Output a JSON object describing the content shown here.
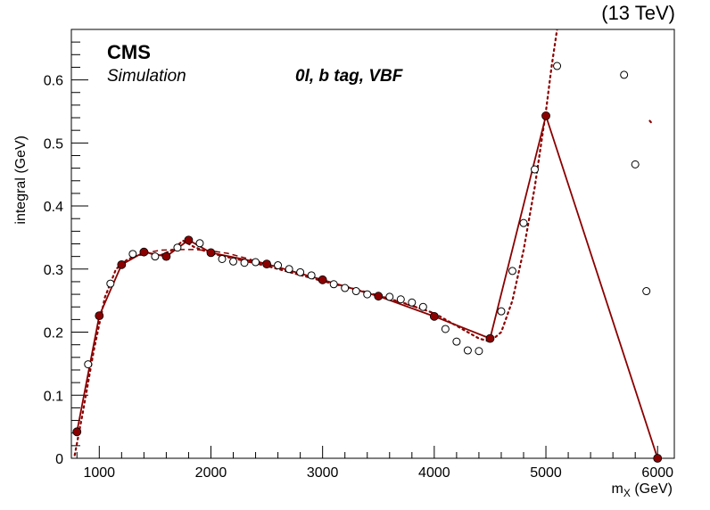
{
  "chart_data": {
    "type": "scatter",
    "title": "",
    "xlabel": "m",
    "xlabel_sub": "X",
    "xlabel_unit": "(GeV)",
    "ylabel": "integral (GeV)",
    "xlim": [
      750,
      6150
    ],
    "ylim": [
      0,
      0.68
    ],
    "x_ticks": [
      1000,
      2000,
      3000,
      4000,
      5000,
      6000
    ],
    "x_tick_labels": [
      "1000",
      "2000",
      "3000",
      "4000",
      "5000",
      "6000"
    ],
    "y_ticks": [
      0,
      0.1,
      0.2,
      0.3,
      0.4,
      0.5,
      0.6
    ],
    "y_tick_labels": [
      "0",
      "0.1",
      "0.2",
      "0.3",
      "0.4",
      "0.5",
      "0.6"
    ],
    "grid": false,
    "annotations": {
      "cms": "CMS",
      "simulation": "Simulation",
      "category": "0l, b tag, VBF",
      "energy": "(13 TeV)"
    },
    "colors": {
      "series": "#8b0000",
      "axes": "#000000"
    },
    "series": [
      {
        "style": "filled-markers-solid-line",
        "x": [
          800,
          1000,
          1200,
          1400,
          1600,
          1800,
          2000,
          2500,
          3000,
          3500,
          4000,
          4500,
          5000,
          6000
        ],
        "y": [
          0.042,
          0.226,
          0.307,
          0.327,
          0.32,
          0.346,
          0.326,
          0.308,
          0.283,
          0.257,
          0.225,
          0.19,
          0.543,
          0.0
        ]
      },
      {
        "style": "open-markers",
        "x": [
          900,
          1100,
          1300,
          1500,
          1700,
          1900,
          2100,
          2200,
          2300,
          2400,
          2600,
          2700,
          2800,
          2900,
          3100,
          3200,
          3300,
          3400,
          3600,
          3700,
          3800,
          3900,
          4100,
          4200,
          4300,
          4400,
          4600,
          4700,
          4800,
          4900,
          5100,
          5700,
          5800,
          5900
        ],
        "y": [
          0.149,
          0.277,
          0.324,
          0.32,
          0.334,
          0.341,
          0.316,
          0.312,
          0.31,
          0.311,
          0.306,
          0.3,
          0.295,
          0.29,
          0.276,
          0.27,
          0.265,
          0.26,
          0.256,
          0.252,
          0.247,
          0.24,
          0.205,
          0.185,
          0.171,
          0.17,
          0.233,
          0.297,
          0.373,
          0.458,
          0.622,
          0.608,
          0.466,
          0.265
        ]
      },
      {
        "style": "dashed-fit",
        "x": [
          1400,
          1550,
          1700,
          1850,
          2000,
          2150,
          2300,
          2500,
          2800,
          3100,
          3400,
          3700,
          4000
        ],
        "y": [
          0.325,
          0.33,
          0.331,
          0.331,
          0.329,
          0.325,
          0.318,
          0.308,
          0.293,
          0.277,
          0.262,
          0.247,
          0.23
        ]
      },
      {
        "style": "dotted-spline",
        "x": [
          780,
          850,
          950,
          1050,
          1150,
          1250,
          1350,
          1450,
          1550,
          1650,
          1750,
          1850,
          2000,
          2250,
          2500,
          2750,
          3000,
          3250,
          3500,
          3750,
          4000,
          4150,
          4300,
          4400,
          4500,
          4600,
          4700,
          4800,
          4900,
          5000,
          5050,
          5100
        ],
        "y": [
          0.005,
          0.07,
          0.17,
          0.255,
          0.3,
          0.315,
          0.322,
          0.325,
          0.322,
          0.33,
          0.345,
          0.335,
          0.325,
          0.315,
          0.305,
          0.293,
          0.281,
          0.27,
          0.258,
          0.245,
          0.23,
          0.215,
          0.2,
          0.19,
          0.185,
          0.2,
          0.25,
          0.33,
          0.43,
          0.55,
          0.62,
          0.68
        ]
      },
      {
        "style": "dotted-spline",
        "x": [
          5930,
          5955
        ],
        "y": [
          0.535,
          0.53
        ]
      }
    ]
  }
}
